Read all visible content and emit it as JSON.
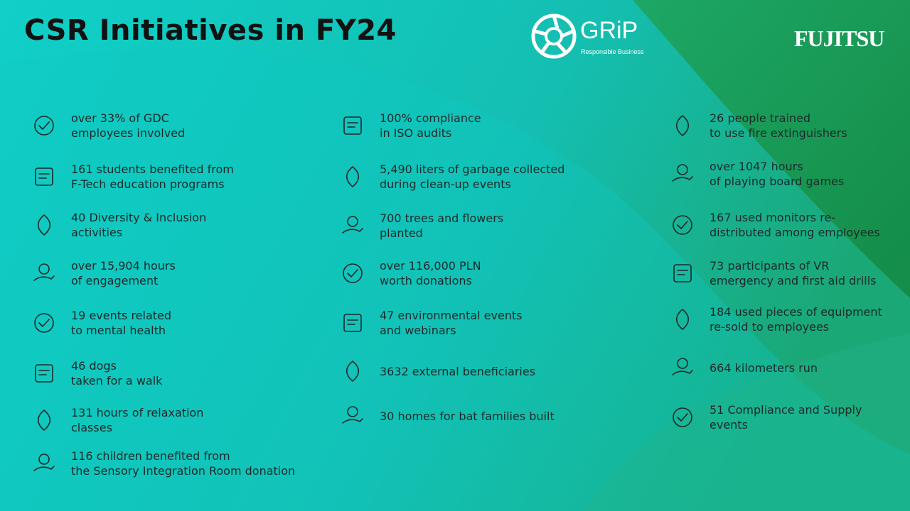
{
  "header": {
    "title": "CSR Initiatives in FY24",
    "grip": "GRiP",
    "grip_tagline": "Responsible Business",
    "fujitsu": "FUJITSU"
  },
  "columns": [
    {
      "items": [
        {
          "lines": [
            "over 33% of GDC",
            "employees involved"
          ]
        },
        {
          "lines": [
            "161 students benefited from",
            "F-Tech education programs"
          ]
        },
        {
          "lines": [
            "40 Diversity & Inclusion",
            "activities"
          ]
        },
        {
          "lines": [
            "over 15,904 hours",
            "of engagement"
          ]
        },
        {
          "lines": [
            "19 events related",
            "to mental health"
          ]
        },
        {
          "lines": [
            "46 dogs",
            "taken for a walk"
          ]
        },
        {
          "lines": [
            "131 hours of relaxation",
            "classes"
          ]
        },
        {
          "lines": [
            "116 children benefited from",
            "the Sensory Integration Room donation"
          ]
        }
      ]
    },
    {
      "items": [
        {
          "lines": [
            "100% compliance",
            "in ISO audits"
          ]
        },
        {
          "lines": [
            "5,490 liters of garbage collected",
            "during clean-up events"
          ]
        },
        {
          "lines": [
            "700 trees and flowers",
            "planted"
          ]
        },
        {
          "lines": [
            "over 116,000 PLN",
            "worth donations"
          ]
        },
        {
          "lines": [
            "47 environmental events",
            "and webinars"
          ]
        },
        {
          "lines": [
            "3632 external beneficiaries"
          ]
        },
        {
          "lines": [
            "30 homes for bat families built"
          ]
        }
      ]
    },
    {
      "items": [
        {
          "lines": [
            "26 people trained",
            "to use fire extinguishers"
          ]
        },
        {
          "lines": [
            "over 1047 hours",
            "of playing board games"
          ]
        },
        {
          "lines": [
            "167 used monitors re-",
            "distributed among employees"
          ]
        },
        {
          "lines": [
            "73 participants of VR",
            "emergency and first aid drills"
          ]
        },
        {
          "lines": [
            "184 used pieces of equipment",
            "re-sold to employees"
          ]
        },
        {
          "lines": [
            "664 kilometers run"
          ]
        },
        {
          "lines": [
            "51 Compliance and Supply",
            "events"
          ]
        }
      ]
    }
  ]
}
